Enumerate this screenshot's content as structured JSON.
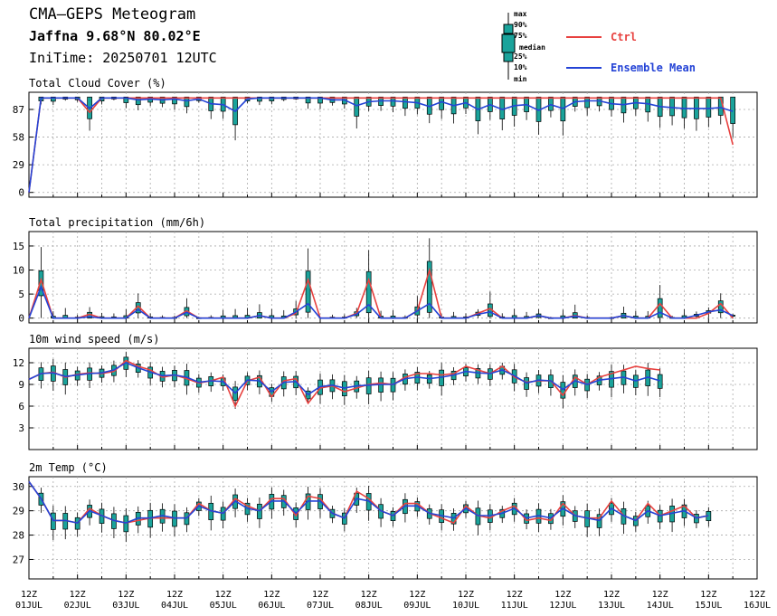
{
  "header": {
    "title": "CMA—GEPS Meteogram",
    "location": "Jaffna 9.68°N 80.02°E",
    "init_time": "IniTime: 20250701 12UTC"
  },
  "box_key": {
    "labels": [
      "max",
      "90%",
      "75%",
      "median",
      "25%",
      "10%",
      "min"
    ]
  },
  "colors": {
    "ctrl": "#e8413f",
    "mean": "#2443d6",
    "box_fill": "#1aa39b",
    "box_edge": "#000000",
    "grid": "#aaaaaa"
  },
  "x_axis": {
    "tick_top": "12Z",
    "tick_labels": [
      "01JUL",
      "02JUL",
      "03JUL",
      "04JUL",
      "05JUL",
      "06JUL",
      "07JUL",
      "08JUL",
      "09JUL",
      "10JUL",
      "11JUL",
      "12JUL",
      "13JUL",
      "14JUL",
      "15JUL",
      "16JUL"
    ]
  },
  "chart_data": [
    {
      "type": "line",
      "title": "Total Cloud Cover (%)",
      "legend": [
        "Ctrl",
        "Ensemble Mean"
      ],
      "ylim": [
        -5,
        105
      ],
      "yticks": [
        0,
        29,
        58,
        87
      ],
      "x_unit": "days since 01JUL 12Z, step 6h",
      "series": [
        {
          "name": "Ctrl",
          "values": [
            0,
            99,
            99,
            99,
            99,
            84,
            99,
            99,
            99,
            99,
            99,
            99,
            99,
            99,
            99,
            99,
            99,
            99,
            99,
            99,
            99,
            99,
            99,
            99,
            99,
            99,
            99,
            99,
            99,
            99,
            99,
            99,
            99,
            99,
            99,
            99,
            99,
            99,
            99,
            99,
            99,
            99,
            99,
            99,
            99,
            99,
            99,
            99,
            99,
            99,
            99,
            99,
            99,
            99,
            99,
            99,
            99,
            99,
            50
          ]
        },
        {
          "name": "Ensemble Mean",
          "values": [
            0,
            99,
            99,
            99,
            99,
            88,
            99,
            99,
            99,
            97,
            98,
            97,
            98,
            96,
            98,
            93,
            92,
            85,
            98,
            99,
            99,
            99,
            99,
            99,
            99,
            97,
            97,
            91,
            95,
            96,
            96,
            95,
            94,
            90,
            95,
            91,
            94,
            87,
            92,
            87,
            91,
            92,
            86,
            92,
            88,
            95,
            96,
            96,
            93,
            92,
            94,
            93,
            90,
            89,
            88,
            88,
            88,
            89,
            85
          ]
        }
      ]
    },
    {
      "type": "line",
      "title": "Total precipitation (mm/6h)",
      "ylim": [
        -1,
        18
      ],
      "yticks": [
        0,
        5,
        10,
        15
      ],
      "series": [
        {
          "name": "Ctrl",
          "values": [
            0,
            8,
            0,
            0,
            0,
            0.8,
            0,
            0,
            0,
            2.5,
            0,
            0,
            0,
            1.5,
            0,
            0,
            0,
            0,
            0,
            0.5,
            0,
            0,
            1,
            8,
            0,
            0,
            0,
            1,
            8,
            0,
            0,
            0,
            1.5,
            10,
            0,
            0,
            0,
            1,
            2,
            0,
            0,
            0,
            0.5,
            0,
            0,
            0.5,
            0,
            0,
            0,
            0.5,
            0,
            0,
            3,
            0,
            0,
            0,
            1,
            3,
            0
          ]
        },
        {
          "name": "Ensemble Mean",
          "values": [
            0,
            6.5,
            0,
            0,
            0,
            0.3,
            0,
            0,
            0,
            1.8,
            0,
            0,
            0,
            1.2,
            0,
            0,
            0,
            0,
            0,
            0.5,
            0,
            0,
            1.3,
            3,
            0,
            0,
            0,
            0.8,
            2.8,
            0,
            0,
            0,
            1.5,
            3,
            0,
            0,
            0,
            0.8,
            1.3,
            0,
            0,
            0,
            0.5,
            0,
            0,
            0.4,
            0,
            0,
            0,
            0.5,
            0,
            0,
            1.2,
            0,
            0,
            0.6,
            1.3,
            1.7,
            0.5
          ]
        }
      ]
    },
    {
      "type": "line",
      "title": "10m wind speed (m/s)",
      "ylim": [
        0,
        14
      ],
      "yticks": [
        3,
        6,
        9,
        12
      ],
      "series": [
        {
          "name": "Ctrl",
          "values": [
            9.7,
            10.5,
            10.7,
            10,
            10.4,
            10.6,
            10.5,
            10.8,
            12.3,
            11.5,
            11,
            10,
            10.3,
            9.8,
            9.2,
            9.5,
            10,
            6,
            9.5,
            10,
            7.3,
            9.5,
            9.8,
            6.4,
            8.5,
            8.8,
            8,
            8.5,
            9,
            9.2,
            9,
            10,
            10.5,
            10.5,
            10.3,
            10.5,
            11.5,
            11,
            10.5,
            11.5,
            10,
            9.3,
            9.5,
            9.5,
            7.5,
            10,
            9,
            10,
            10.5,
            11,
            11.5,
            11.2,
            11
          ]
        },
        {
          "name": "Ensemble Mean",
          "values": [
            9.7,
            10.5,
            10.6,
            10.1,
            10.3,
            10.5,
            10.6,
            11,
            12,
            11.3,
            10.7,
            10.2,
            10.3,
            10,
            9.3,
            9.5,
            9.4,
            7.8,
            9.6,
            9.5,
            8,
            9.3,
            9.4,
            7.6,
            8.7,
            8.9,
            8.5,
            8.8,
            8.9,
            9,
            9,
            9.8,
            10,
            9.8,
            10,
            10.3,
            10.8,
            10.6,
            10.5,
            11,
            10.2,
            9.2,
            9.6,
            9.5,
            8.3,
            9.5,
            9,
            9.6,
            9.8,
            10,
            9.5,
            10,
            9.5
          ]
        }
      ]
    },
    {
      "type": "line",
      "title": "2m Temp (°C)",
      "ylim": [
        26.2,
        30.4
      ],
      "yticks": [
        27,
        28,
        29,
        30
      ],
      "series": [
        {
          "name": "Ctrl",
          "values": [
            30.2,
            29.5,
            28.6,
            28.6,
            28.5,
            29.1,
            28.8,
            28.6,
            28.5,
            28.6,
            28.7,
            28.7,
            28.7,
            28.7,
            29.3,
            29,
            28.9,
            29.5,
            29.2,
            29,
            29.5,
            29.5,
            28.8,
            29.6,
            29.5,
            28.9,
            28.7,
            29.8,
            29.5,
            29,
            28.8,
            29.3,
            29.3,
            28.9,
            28.7,
            28.5,
            29.2,
            28.8,
            28.7,
            29,
            29.2,
            28.6,
            28.7,
            28.6,
            29.3,
            28.8,
            28.7,
            28.7,
            29.4,
            28.8,
            28.6,
            29.3,
            28.8,
            29,
            29.2,
            28.7,
            28.8
          ]
        },
        {
          "name": "Ensemble Mean",
          "values": [
            30.2,
            29.5,
            28.6,
            28.6,
            28.5,
            29,
            28.8,
            28.6,
            28.5,
            28.7,
            28.7,
            28.8,
            28.7,
            28.7,
            29.2,
            29,
            28.9,
            29.4,
            29.1,
            29,
            29.4,
            29.4,
            28.9,
            29.4,
            29.4,
            28.9,
            28.7,
            29.5,
            29.4,
            29,
            28.8,
            29.2,
            29.2,
            28.9,
            28.8,
            28.7,
            29.1,
            28.8,
            28.8,
            28.9,
            29.1,
            28.7,
            28.8,
            28.7,
            29.1,
            28.8,
            28.7,
            28.6,
            29.1,
            28.8,
            28.6,
            29,
            28.8,
            28.9,
            29,
            28.7,
            28.8
          ]
        }
      ]
    }
  ]
}
